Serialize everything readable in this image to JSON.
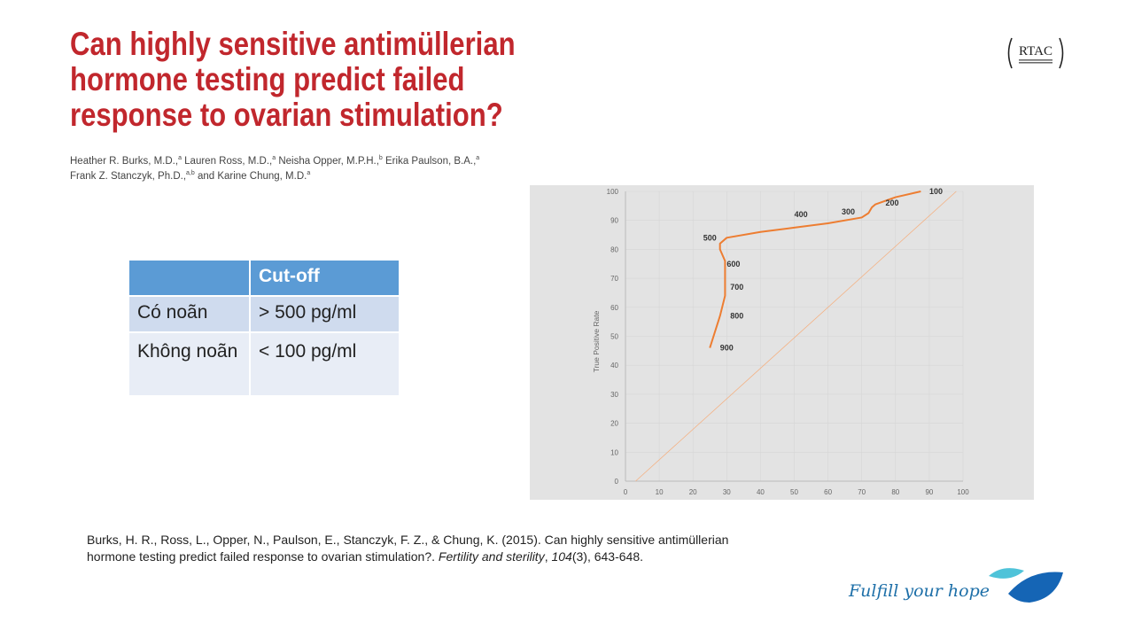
{
  "title": [
    "Can highly sensitive antimüllerian",
    "hormone testing predict failed",
    "response to ovarian stimulation?"
  ],
  "authors": {
    "line1": [
      [
        "Heather R. Burks, M.D.,",
        "a"
      ],
      [
        " Lauren Ross, M.D.,",
        "a"
      ],
      [
        " Neisha Opper, M.P.H.,",
        "b"
      ],
      [
        " Erika Paulson, B.A.,",
        "a"
      ]
    ],
    "line2": [
      [
        "Frank Z. Stanczyk, Ph.D.,",
        "a,b"
      ],
      [
        " and Karine Chung, M.D.",
        "a"
      ]
    ]
  },
  "logo_text": "RTAC",
  "table": {
    "header": [
      "",
      "Cut-off"
    ],
    "rows": [
      [
        "Có noãn",
        "> 500 pg/ml"
      ],
      [
        "Không noãn",
        "< 100 pg/ml"
      ]
    ]
  },
  "citation": {
    "line1": "Burks, H. R., Ross, L., Opper, N., Paulson, E., Stanczyk, F. Z., & Chung, K. (2015). Can highly sensitive antimüllerian",
    "line2_a": "hormone testing predict failed response to ovarian stimulation?. ",
    "journal": "Fertility and sterility",
    "line2_b": ", ",
    "volume": "104",
    "line2_c": "(3), 643-648."
  },
  "tagline": "Fulfill your hope",
  "colors": {
    "title": "#c1272d",
    "table_header": "#5b9bd5",
    "curve": "#ed7d31",
    "diagonal": "#f4b183"
  },
  "chart_data": {
    "type": "line",
    "title": "",
    "xlabel": "",
    "ylabel": "True Positive Rate",
    "xlim": [
      0,
      100
    ],
    "ylim": [
      0,
      100
    ],
    "xticks": [
      0,
      10,
      20,
      30,
      40,
      50,
      60,
      70,
      80,
      90,
      100
    ],
    "yticks": [
      0,
      10,
      20,
      30,
      40,
      50,
      60,
      70,
      80,
      90,
      100
    ],
    "grid": true,
    "series": [
      {
        "name": "ROC",
        "x": [
          25,
          28,
          29.5,
          29.5,
          29.5,
          28,
          28,
          30,
          40,
          50,
          60,
          70,
          72,
          73,
          74,
          80,
          87.5
        ],
        "y": [
          46,
          57,
          64,
          70,
          76,
          80,
          82,
          84,
          86,
          87.5,
          89,
          91,
          92.5,
          94.5,
          95.5,
          98,
          100
        ]
      },
      {
        "name": "reference",
        "x": [
          3,
          98
        ],
        "y": [
          0,
          100
        ]
      }
    ],
    "annotations": [
      {
        "text": "100",
        "x": 92,
        "y": 100
      },
      {
        "text": "200",
        "x": 79,
        "y": 96
      },
      {
        "text": "300",
        "x": 66,
        "y": 93
      },
      {
        "text": "400",
        "x": 52,
        "y": 92
      },
      {
        "text": "500",
        "x": 25,
        "y": 84
      },
      {
        "text": "600",
        "x": 32,
        "y": 75
      },
      {
        "text": "700",
        "x": 33,
        "y": 67
      },
      {
        "text": "800",
        "x": 33,
        "y": 57
      },
      {
        "text": "900",
        "x": 30,
        "y": 46
      }
    ]
  }
}
